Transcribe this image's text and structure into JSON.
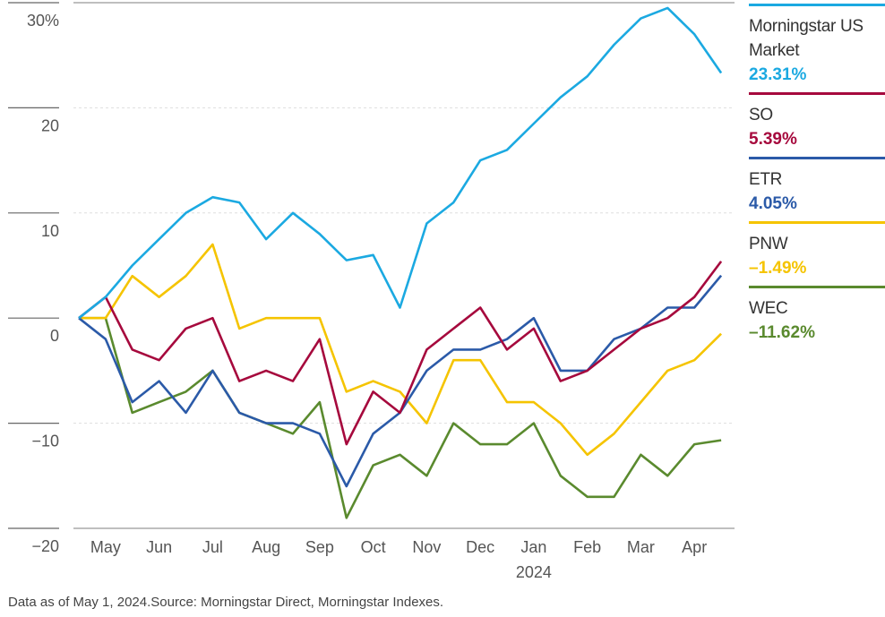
{
  "chart_data": {
    "type": "line",
    "title": "",
    "xlabel": "",
    "ylabel": "",
    "ylim": [
      -20,
      30
    ],
    "yticks": [
      30,
      20,
      10,
      0,
      -10,
      -20
    ],
    "ytick_labels": [
      "30%",
      "20",
      "10",
      "0",
      "−10",
      "−20"
    ],
    "x_unit": "months since May 1, 2023",
    "xlim": [
      -0.1,
      12.25
    ],
    "month_labels": [
      "May",
      "Jun",
      "Jul",
      "Aug",
      "Sep",
      "Oct",
      "Nov",
      "Dec",
      "Jan",
      "Feb",
      "Mar",
      "Apr"
    ],
    "year_label": "2024",
    "x": [
      0,
      0.5,
      1,
      1.5,
      2,
      2.5,
      3,
      3.5,
      4,
      4.5,
      5,
      5.5,
      6,
      6.5,
      7,
      7.5,
      8,
      8.5,
      9,
      9.5,
      10,
      10.5,
      11,
      11.5,
      12
    ],
    "series": [
      {
        "name": "Morningstar US Market",
        "final": "23.31%",
        "color": "#1ba9e1",
        "values": [
          0,
          2,
          5,
          7.5,
          10,
          11.5,
          11,
          7.5,
          10,
          8,
          5.5,
          6,
          1,
          9,
          11,
          15,
          16,
          18.5,
          21,
          23,
          26,
          28.5,
          29.5,
          27,
          23.31
        ]
      },
      {
        "name": "SO",
        "final": "5.39%",
        "color": "#a6093d",
        "values": [
          0,
          2,
          -3,
          -4,
          -1,
          0,
          -6,
          -5,
          -6,
          -2,
          -12,
          -7,
          -9,
          -3,
          -1,
          1,
          -3,
          -1,
          -6,
          -5,
          -3,
          -1,
          0,
          2,
          5.39
        ]
      },
      {
        "name": "ETR",
        "final": "4.05%",
        "color": "#2b5aa8",
        "values": [
          0,
          -2,
          -8,
          -6,
          -9,
          -5,
          -9,
          -10,
          -10,
          -11,
          -16,
          -11,
          -9,
          -5,
          -3,
          -3,
          -2,
          0,
          -5,
          -5,
          -2,
          -1,
          1,
          1,
          4.05
        ]
      },
      {
        "name": "PNW",
        "final": "–1.49%",
        "color": "#f5c400",
        "values": [
          0,
          0,
          4,
          2,
          4,
          7,
          -1,
          0,
          0,
          0,
          -7,
          -6,
          -7,
          -10,
          -4,
          -4,
          -8,
          -8,
          -10,
          -13,
          -11,
          -8,
          -5,
          -4,
          -1.49
        ]
      },
      {
        "name": "WEC",
        "final": "–11.62%",
        "color": "#5a8a2e",
        "values": [
          0,
          0,
          -9,
          -8,
          -7,
          -5,
          -9,
          -10,
          -11,
          -8,
          -19,
          -14,
          -13,
          -15,
          -10,
          -12,
          -12,
          -10,
          -15,
          -17,
          -17,
          -13,
          -15,
          -12,
          -11.62
        ]
      }
    ],
    "legend_placement": "right"
  },
  "footer": "Data as of May 1, 2024.Source: Morningstar Direct, Morningstar Indexes."
}
